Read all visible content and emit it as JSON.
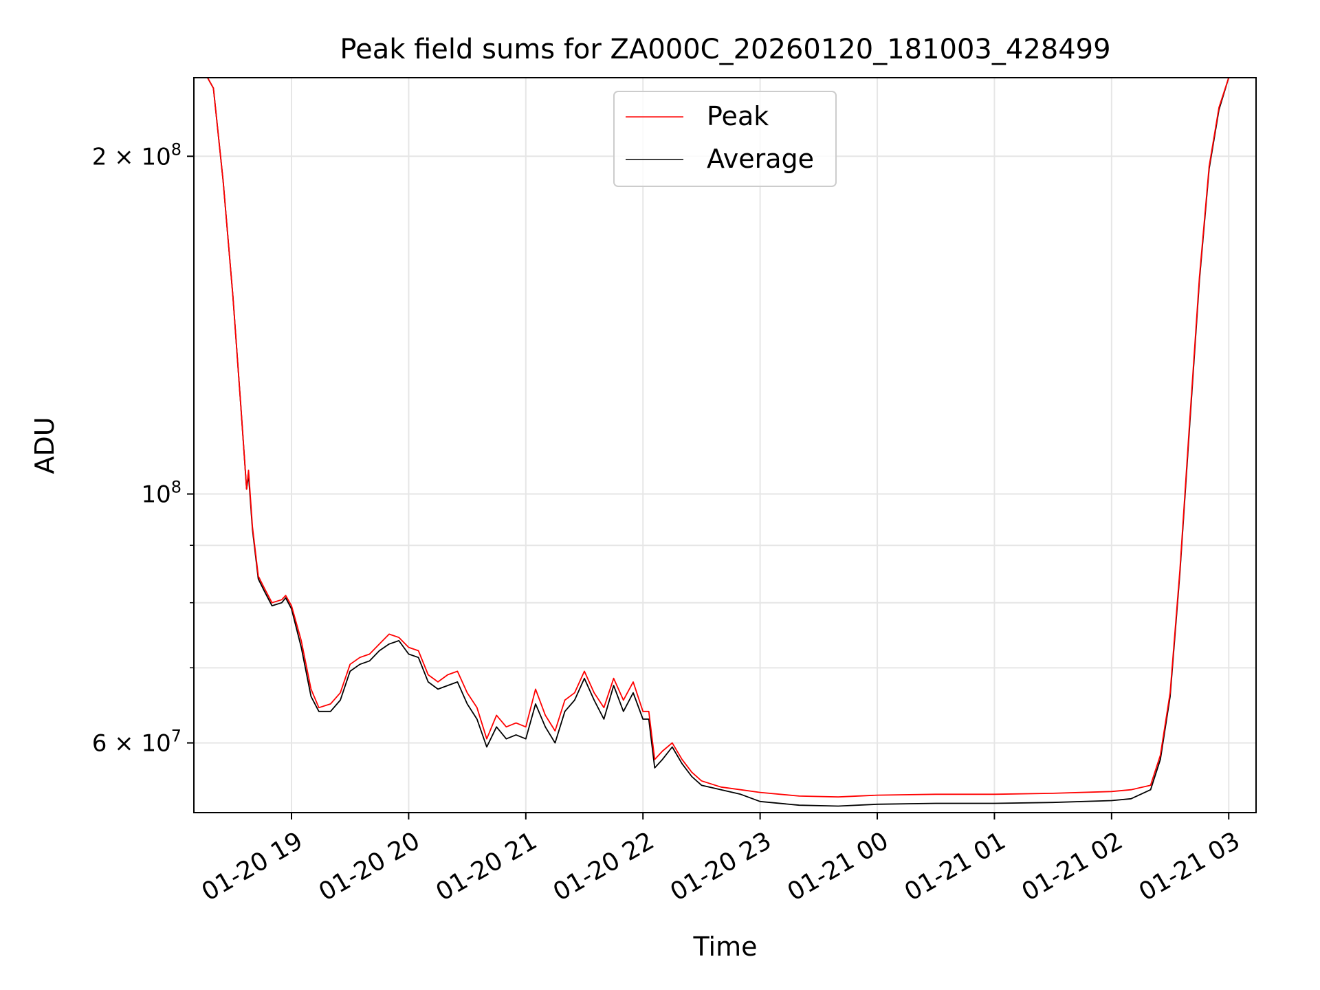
{
  "chart_data": {
    "type": "line",
    "title": "Peak field sums for ZA000C_20260120_181003_428499",
    "xlabel": "Time",
    "ylabel": "ADU",
    "x_scale": "time",
    "y_scale": "log",
    "xlim": [
      "2026-01-20 18:10",
      "2026-01-21 03:14"
    ],
    "ylim": [
      52000000.0,
      235000000.0
    ],
    "grid": true,
    "legend_position": "upper center",
    "x_ticks": [
      {
        "value": "2026-01-20 19:00",
        "label": "01-20 19"
      },
      {
        "value": "2026-01-20 20:00",
        "label": "01-20 20"
      },
      {
        "value": "2026-01-20 21:00",
        "label": "01-20 21"
      },
      {
        "value": "2026-01-20 22:00",
        "label": "01-20 22"
      },
      {
        "value": "2026-01-20 23:00",
        "label": "01-20 23"
      },
      {
        "value": "2026-01-21 00:00",
        "label": "01-21 00"
      },
      {
        "value": "2026-01-21 01:00",
        "label": "01-21 01"
      },
      {
        "value": "2026-01-21 02:00",
        "label": "01-21 02"
      },
      {
        "value": "2026-01-21 03:00",
        "label": "01-21 03"
      }
    ],
    "y_ticks_major": [
      {
        "value": 60000000,
        "base": "6 × 10",
        "exp": "7"
      },
      {
        "value": 100000000,
        "base": "10",
        "exp": "8"
      },
      {
        "value": 200000000,
        "base": "2 × 10",
        "exp": "8"
      }
    ],
    "y_ticks_minor": [
      70000000,
      80000000,
      90000000
    ],
    "series": [
      {
        "name": "Average",
        "color": "#000000",
        "points": [
          [
            "2026-01-20 18:10",
            235000000.0
          ],
          [
            "2026-01-20 18:17",
            235000000.0
          ],
          [
            "2026-01-20 18:20",
            230000000.0
          ],
          [
            "2026-01-20 18:25",
            190000000.0
          ],
          [
            "2026-01-20 18:30",
            150000000.0
          ],
          [
            "2026-01-20 18:34",
            120000000.0
          ],
          [
            "2026-01-20 18:37",
            101000000.0
          ],
          [
            "2026-01-20 18:38",
            104000000.0
          ],
          [
            "2026-01-20 18:40",
            93000000.0
          ],
          [
            "2026-01-20 18:43",
            84000000.0
          ],
          [
            "2026-01-20 18:46",
            82000000.0
          ],
          [
            "2026-01-20 18:50",
            79500000.0
          ],
          [
            "2026-01-20 18:55",
            80000000.0
          ],
          [
            "2026-01-20 18:57",
            80800000.0
          ],
          [
            "2026-01-20 19:00",
            79000000.0
          ],
          [
            "2026-01-20 19:05",
            73000000.0
          ],
          [
            "2026-01-20 19:10",
            66000000.0
          ],
          [
            "2026-01-20 19:14",
            64000000.0
          ],
          [
            "2026-01-20 19:20",
            64000000.0
          ],
          [
            "2026-01-20 19:25",
            65500000.0
          ],
          [
            "2026-01-20 19:30",
            69500000.0
          ],
          [
            "2026-01-20 19:35",
            70500000.0
          ],
          [
            "2026-01-20 19:40",
            71000000.0
          ],
          [
            "2026-01-20 19:45",
            72500000.0
          ],
          [
            "2026-01-20 19:50",
            73500000.0
          ],
          [
            "2026-01-20 19:55",
            74000000.0
          ],
          [
            "2026-01-20 20:00",
            72000000.0
          ],
          [
            "2026-01-20 20:05",
            71500000.0
          ],
          [
            "2026-01-20 20:10",
            68000000.0
          ],
          [
            "2026-01-20 20:15",
            67000000.0
          ],
          [
            "2026-01-20 20:20",
            67500000.0
          ],
          [
            "2026-01-20 20:25",
            68000000.0
          ],
          [
            "2026-01-20 20:30",
            65000000.0
          ],
          [
            "2026-01-20 20:35",
            63000000.0
          ],
          [
            "2026-01-20 20:40",
            59500000.0
          ],
          [
            "2026-01-20 20:45",
            62000000.0
          ],
          [
            "2026-01-20 20:50",
            60500000.0
          ],
          [
            "2026-01-20 20:55",
            61000000.0
          ],
          [
            "2026-01-20 21:00",
            60500000.0
          ],
          [
            "2026-01-20 21:05",
            65000000.0
          ],
          [
            "2026-01-20 21:10",
            62000000.0
          ],
          [
            "2026-01-20 21:15",
            60000000.0
          ],
          [
            "2026-01-20 21:20",
            64000000.0
          ],
          [
            "2026-01-20 21:25",
            65500000.0
          ],
          [
            "2026-01-20 21:30",
            68500000.0
          ],
          [
            "2026-01-20 21:35",
            65500000.0
          ],
          [
            "2026-01-20 21:40",
            63000000.0
          ],
          [
            "2026-01-20 21:45",
            67500000.0
          ],
          [
            "2026-01-20 21:50",
            64000000.0
          ],
          [
            "2026-01-20 21:55",
            66500000.0
          ],
          [
            "2026-01-20 22:00",
            63000000.0
          ],
          [
            "2026-01-20 22:03",
            63000000.0
          ],
          [
            "2026-01-20 22:06",
            57000000.0
          ],
          [
            "2026-01-20 22:10",
            58000000.0
          ],
          [
            "2026-01-20 22:15",
            59500000.0
          ],
          [
            "2026-01-20 22:20",
            57500000.0
          ],
          [
            "2026-01-20 22:25",
            56000000.0
          ],
          [
            "2026-01-20 22:30",
            55000000.0
          ],
          [
            "2026-01-20 22:40",
            54500000.0
          ],
          [
            "2026-01-20 22:50",
            54000000.0
          ],
          [
            "2026-01-20 23:00",
            53200000.0
          ],
          [
            "2026-01-20 23:20",
            52800000.0
          ],
          [
            "2026-01-20 23:40",
            52700000.0
          ],
          [
            "2026-01-21 00:00",
            52900000.0
          ],
          [
            "2026-01-21 00:30",
            53000000.0
          ],
          [
            "2026-01-21 01:00",
            53000000.0
          ],
          [
            "2026-01-21 01:30",
            53100000.0
          ],
          [
            "2026-01-21 02:00",
            53300000.0
          ],
          [
            "2026-01-21 02:10",
            53500000.0
          ],
          [
            "2026-01-21 02:20",
            54500000.0
          ],
          [
            "2026-01-21 02:25",
            58000000.0
          ],
          [
            "2026-01-21 02:30",
            66000000.0
          ],
          [
            "2026-01-21 02:35",
            85000000.0
          ],
          [
            "2026-01-21 02:40",
            115000000.0
          ],
          [
            "2026-01-21 02:45",
            155000000.0
          ],
          [
            "2026-01-21 02:50",
            195000000.0
          ],
          [
            "2026-01-21 02:55",
            220000000.0
          ],
          [
            "2026-01-21 03:00",
            235000000.0
          ],
          [
            "2026-01-21 03:14",
            235000000.0
          ]
        ]
      },
      {
        "name": "Peak",
        "color": "#ff0000",
        "points": [
          [
            "2026-01-20 18:10",
            235000000.0
          ],
          [
            "2026-01-20 18:17",
            235000000.0
          ],
          [
            "2026-01-20 18:20",
            230000000.0
          ],
          [
            "2026-01-20 18:25",
            190000000.0
          ],
          [
            "2026-01-20 18:30",
            150000000.0
          ],
          [
            "2026-01-20 18:34",
            120000000.0
          ],
          [
            "2026-01-20 18:37",
            101000000.0
          ],
          [
            "2026-01-20 18:38",
            105000000.0
          ],
          [
            "2026-01-20 18:40",
            93500000.0
          ],
          [
            "2026-01-20 18:43",
            84500000.0
          ],
          [
            "2026-01-20 18:46",
            82500000.0
          ],
          [
            "2026-01-20 18:50",
            80000000.0
          ],
          [
            "2026-01-20 18:55",
            80500000.0
          ],
          [
            "2026-01-20 18:57",
            81200000.0
          ],
          [
            "2026-01-20 19:00",
            79500000.0
          ],
          [
            "2026-01-20 19:05",
            74000000.0
          ],
          [
            "2026-01-20 19:10",
            67000000.0
          ],
          [
            "2026-01-20 19:14",
            64500000.0
          ],
          [
            "2026-01-20 19:20",
            65000000.0
          ],
          [
            "2026-01-20 19:25",
            66500000.0
          ],
          [
            "2026-01-20 19:30",
            70500000.0
          ],
          [
            "2026-01-20 19:35",
            71500000.0
          ],
          [
            "2026-01-20 19:40",
            72000000.0
          ],
          [
            "2026-01-20 19:45",
            73500000.0
          ],
          [
            "2026-01-20 19:50",
            75000000.0
          ],
          [
            "2026-01-20 19:55",
            74500000.0
          ],
          [
            "2026-01-20 20:00",
            73000000.0
          ],
          [
            "2026-01-20 20:05",
            72500000.0
          ],
          [
            "2026-01-20 20:10",
            69000000.0
          ],
          [
            "2026-01-20 20:15",
            68000000.0
          ],
          [
            "2026-01-20 20:20",
            69000000.0
          ],
          [
            "2026-01-20 20:25",
            69500000.0
          ],
          [
            "2026-01-20 20:30",
            66500000.0
          ],
          [
            "2026-01-20 20:35",
            64500000.0
          ],
          [
            "2026-01-20 20:40",
            60500000.0
          ],
          [
            "2026-01-20 20:45",
            63500000.0
          ],
          [
            "2026-01-20 20:50",
            62000000.0
          ],
          [
            "2026-01-20 20:55",
            62500000.0
          ],
          [
            "2026-01-20 21:00",
            62000000.0
          ],
          [
            "2026-01-20 21:05",
            67000000.0
          ],
          [
            "2026-01-20 21:10",
            63500000.0
          ],
          [
            "2026-01-20 21:15",
            61500000.0
          ],
          [
            "2026-01-20 21:20",
            65500000.0
          ],
          [
            "2026-01-20 21:25",
            66500000.0
          ],
          [
            "2026-01-20 21:30",
            69500000.0
          ],
          [
            "2026-01-20 21:35",
            66500000.0
          ],
          [
            "2026-01-20 21:40",
            64500000.0
          ],
          [
            "2026-01-20 21:45",
            68500000.0
          ],
          [
            "2026-01-20 21:50",
            65500000.0
          ],
          [
            "2026-01-20 21:55",
            68000000.0
          ],
          [
            "2026-01-20 22:00",
            64000000.0
          ],
          [
            "2026-01-20 22:03",
            64000000.0
          ],
          [
            "2026-01-20 22:06",
            58000000.0
          ],
          [
            "2026-01-20 22:10",
            59000000.0
          ],
          [
            "2026-01-20 22:15",
            60000000.0
          ],
          [
            "2026-01-20 22:20",
            58000000.0
          ],
          [
            "2026-01-20 22:25",
            56500000.0
          ],
          [
            "2026-01-20 22:30",
            55500000.0
          ],
          [
            "2026-01-20 22:40",
            54800000.0
          ],
          [
            "2026-01-20 22:50",
            54500000.0
          ],
          [
            "2026-01-20 23:00",
            54200000.0
          ],
          [
            "2026-01-20 23:20",
            53800000.0
          ],
          [
            "2026-01-20 23:40",
            53700000.0
          ],
          [
            "2026-01-21 00:00",
            53900000.0
          ],
          [
            "2026-01-21 00:30",
            54000000.0
          ],
          [
            "2026-01-21 01:00",
            54000000.0
          ],
          [
            "2026-01-21 01:30",
            54100000.0
          ],
          [
            "2026-01-21 02:00",
            54300000.0
          ],
          [
            "2026-01-21 02:10",
            54500000.0
          ],
          [
            "2026-01-21 02:20",
            55000000.0
          ],
          [
            "2026-01-21 02:25",
            58500000.0
          ],
          [
            "2026-01-21 02:30",
            66500000.0
          ],
          [
            "2026-01-21 02:35",
            85500000.0
          ],
          [
            "2026-01-21 02:40",
            116000000.0
          ],
          [
            "2026-01-21 02:45",
            156000000.0
          ],
          [
            "2026-01-21 02:50",
            196000000.0
          ],
          [
            "2026-01-21 02:55",
            221000000.0
          ],
          [
            "2026-01-21 03:00",
            235000000.0
          ],
          [
            "2026-01-21 03:14",
            235000000.0
          ]
        ]
      }
    ],
    "legend": [
      {
        "label": "Peak",
        "color": "#ff0000"
      },
      {
        "label": "Average",
        "color": "#000000"
      }
    ]
  }
}
